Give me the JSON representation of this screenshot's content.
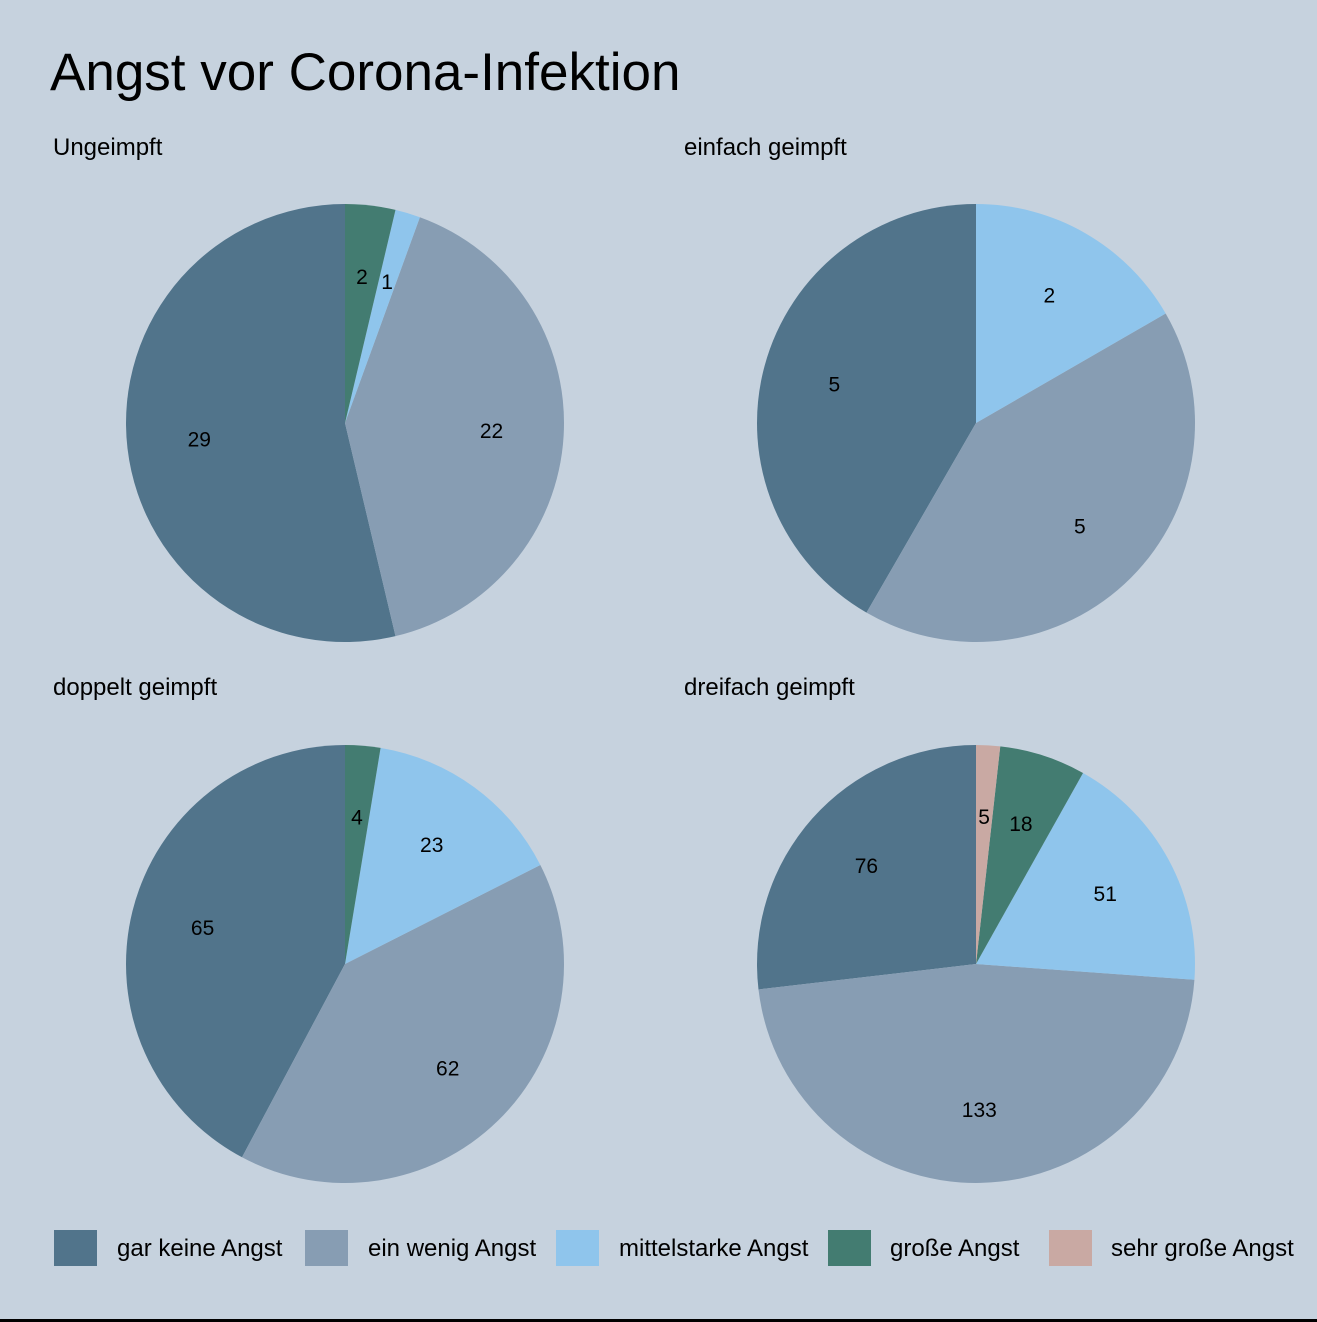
{
  "chart_data": {
    "type": "pie",
    "title": "Angst vor Corona-Infektion",
    "legend_position": "bottom",
    "categories": [
      "gar keine Angst",
      "ein wenig Angst",
      "mittelstarke Angst",
      "große Angst",
      "sehr große Angst"
    ],
    "colors": [
      "#51748b",
      "#879db3",
      "#8fc5ec",
      "#437c71",
      "#c9a9a3"
    ],
    "panels": [
      {
        "title": "Ungeimpft",
        "slices": [
          {
            "category": "gar keine Angst",
            "value": 29
          },
          {
            "category": "ein wenig Angst",
            "value": 22
          },
          {
            "category": "mittelstarke Angst",
            "value": 1
          },
          {
            "category": "große Angst",
            "value": 2
          }
        ]
      },
      {
        "title": "einfach geimpft",
        "slices": [
          {
            "category": "gar keine Angst",
            "value": 5
          },
          {
            "category": "ein wenig Angst",
            "value": 5
          },
          {
            "category": "mittelstarke Angst",
            "value": 2
          }
        ]
      },
      {
        "title": "doppelt geimpft",
        "slices": [
          {
            "category": "gar keine Angst",
            "value": 65
          },
          {
            "category": "ein wenig Angst",
            "value": 62
          },
          {
            "category": "mittelstarke Angst",
            "value": 23
          },
          {
            "category": "große Angst",
            "value": 4
          }
        ]
      },
      {
        "title": "dreifach geimpft",
        "slices": [
          {
            "category": "gar keine Angst",
            "value": 76
          },
          {
            "category": "ein wenig Angst",
            "value": 133
          },
          {
            "category": "mittelstarke Angst",
            "value": 51
          },
          {
            "category": "große Angst",
            "value": 18
          },
          {
            "category": "sehr große Angst",
            "value": 5
          }
        ]
      }
    ]
  },
  "colors": {
    "background": "#c6d2de"
  }
}
